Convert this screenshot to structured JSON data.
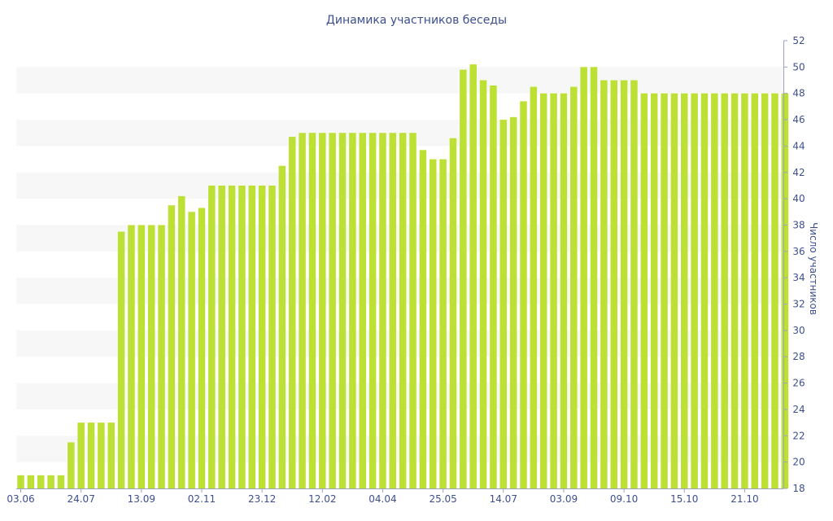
{
  "chart_data": {
    "type": "bar",
    "title": "Динамика участников беседы",
    "xlabel": "",
    "ylabel": "Число участников",
    "ylim": [
      18,
      52
    ],
    "y_ticks": [
      18,
      20,
      22,
      24,
      26,
      28,
      30,
      32,
      34,
      36,
      38,
      40,
      42,
      44,
      46,
      48,
      50,
      52
    ],
    "x_tick_labels": [
      {
        "label": "03.06",
        "index": 0
      },
      {
        "label": "24.07",
        "index": 6
      },
      {
        "label": "13.09",
        "index": 12
      },
      {
        "label": "02.11",
        "index": 18
      },
      {
        "label": "23.12",
        "index": 24
      },
      {
        "label": "12.02",
        "index": 30
      },
      {
        "label": "04.04",
        "index": 36
      },
      {
        "label": "25.05",
        "index": 42
      },
      {
        "label": "14.07",
        "index": 48
      },
      {
        "label": "03.09",
        "index": 54
      },
      {
        "label": "09.10",
        "index": 60
      },
      {
        "label": "15.10",
        "index": 66
      },
      {
        "label": "21.10",
        "index": 72
      }
    ],
    "grid": "horizontal-bands",
    "y_axis_side": "right",
    "bar_color": "#bde034",
    "band_color": "#f7f7f7",
    "text_color": "#3d4f8f",
    "values": [
      19,
      19,
      19,
      19,
      19,
      21.5,
      23,
      23,
      23,
      23,
      37.5,
      38,
      38,
      38,
      38,
      39.5,
      40.2,
      39,
      39.3,
      41,
      41,
      41,
      41,
      41,
      41,
      41,
      42.5,
      44.7,
      45,
      45,
      45,
      45,
      45,
      45,
      45,
      45,
      45,
      45,
      45,
      45,
      43.7,
      43,
      43,
      44.6,
      49.8,
      50.2,
      49,
      48.6,
      46,
      46.2,
      47.4,
      48.5,
      48,
      48,
      48,
      48.5,
      50,
      50,
      49,
      49,
      49,
      49,
      48,
      48,
      48,
      48,
      48,
      48,
      48,
      48,
      48,
      48,
      48,
      48,
      48,
      48,
      48
    ]
  }
}
